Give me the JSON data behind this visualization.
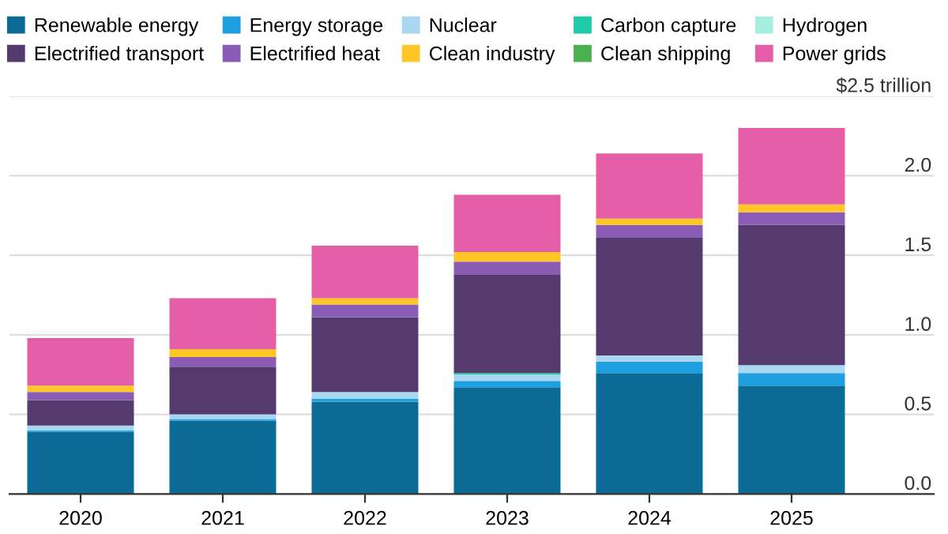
{
  "chart_data": {
    "type": "bar",
    "stacked": true,
    "categories": [
      "2020",
      "2021",
      "2022",
      "2023",
      "2024",
      "2025"
    ],
    "series": [
      {
        "name": "Renewable energy",
        "color": "#0b6a96",
        "values": [
          0.39,
          0.46,
          0.58,
          0.67,
          0.76,
          0.68
        ]
      },
      {
        "name": "Energy storage",
        "color": "#1f9ee0",
        "values": [
          0.01,
          0.01,
          0.02,
          0.04,
          0.07,
          0.08
        ]
      },
      {
        "name": "Nuclear",
        "color": "#a9d6f0",
        "values": [
          0.03,
          0.03,
          0.04,
          0.04,
          0.04,
          0.05
        ]
      },
      {
        "name": "Carbon capture",
        "color": "#1fcaa8",
        "values": [
          0,
          0,
          0,
          0.01,
          0,
          0
        ]
      },
      {
        "name": "Hydrogen",
        "color": "#a8eee0",
        "values": [
          0,
          0,
          0,
          null,
          null,
          null
        ]
      },
      {
        "name": "Electrified transport",
        "color": "#553a6e",
        "values": [
          0.16,
          0.3,
          0.47,
          0.62,
          0.74,
          0.88
        ]
      },
      {
        "name": "Electrified heat",
        "color": "#8b5cb5",
        "values": [
          0.05,
          0.06,
          0.08,
          0.08,
          0.08,
          0.08
        ]
      },
      {
        "name": "Clean industry",
        "color": "#ffc627",
        "values": [
          0.04,
          0.05,
          0.04,
          0.06,
          0.04,
          0.05
        ]
      },
      {
        "name": "Clean shipping",
        "color": "#4caf50",
        "values": [
          0,
          0,
          0,
          0,
          0,
          0
        ]
      },
      {
        "name": "Power grids",
        "color": "#e55fa8",
        "values": [
          0.3,
          0.32,
          0.33,
          0.36,
          0.41,
          0.48
        ]
      }
    ],
    "ylim": [
      0,
      2.5
    ],
    "yticks": [
      {
        "value": 0,
        "label": "0.0"
      },
      {
        "value": 0.5,
        "label": "0.5"
      },
      {
        "value": 1,
        "label": "1.0"
      },
      {
        "value": 1.5,
        "label": "1.5"
      },
      {
        "value": 2,
        "label": "2.0"
      },
      {
        "value": 2.5,
        "label": "$2.5 trillion"
      }
    ],
    "grid": "y",
    "legend": "top"
  }
}
